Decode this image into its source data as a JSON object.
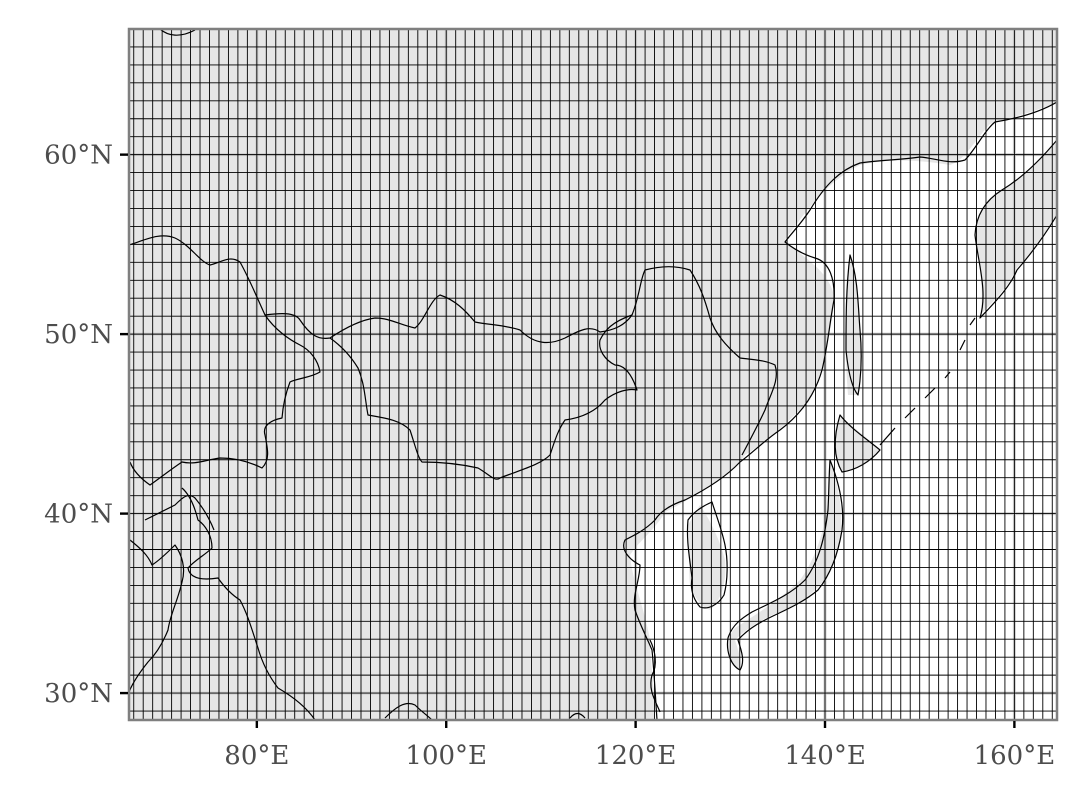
{
  "chart_data": {
    "type": "map",
    "projection": "equirectangular",
    "xlim": [
      66.5,
      164.5
    ],
    "ylim": [
      28.5,
      67
    ],
    "x_ticks": [
      {
        "value": 80,
        "label": "80°E"
      },
      {
        "value": 100,
        "label": "100°E"
      },
      {
        "value": 120,
        "label": "120°E"
      },
      {
        "value": 140,
        "label": "140°E"
      },
      {
        "value": 160,
        "label": "160°E"
      }
    ],
    "y_ticks": [
      {
        "value": 60,
        "label": "60°N"
      },
      {
        "value": 50,
        "label": "50°N"
      },
      {
        "value": 40,
        "label": "40°N"
      },
      {
        "value": 30,
        "label": "30°N"
      }
    ],
    "grid": {
      "cell_size_deg": 1,
      "line_color": "#000000"
    },
    "land_color": "#e6e6e6",
    "ocean_color": "#ffffff",
    "panel_border_color": "#7f7f7f",
    "major_gridline_color": "#d0d0d0",
    "layers": [
      "land-ocean fill",
      "1° grid",
      "coastlines and borders"
    ]
  }
}
